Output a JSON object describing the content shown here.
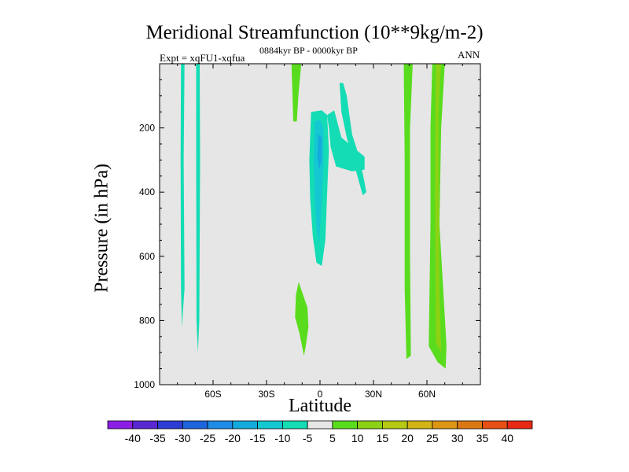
{
  "chart_data": {
    "type": "heatmap",
    "title": "Meridional Streamfunction (10**9kg/m-2)",
    "subtitle": "0884kyr BP - 0000kyr BP",
    "experiment_label": "Expt = xqFU1-xqfua",
    "season_label": "ANN",
    "xlabel": "Latitude",
    "ylabel": "Pressure (in hPa)",
    "xlim": [
      -90,
      90
    ],
    "ylim": [
      1000,
      0
    ],
    "x_ticks": [
      {
        "value": -60,
        "label": "60S"
      },
      {
        "value": -30,
        "label": "30S"
      },
      {
        "value": 0,
        "label": "0"
      },
      {
        "value": 30,
        "label": "30N"
      },
      {
        "value": 60,
        "label": "60N"
      }
    ],
    "y_ticks": [
      {
        "value": 200,
        "label": "200"
      },
      {
        "value": 400,
        "label": "400"
      },
      {
        "value": 600,
        "label": "600"
      },
      {
        "value": 800,
        "label": "800"
      },
      {
        "value": 1000,
        "label": "1000"
      }
    ],
    "background_color": "#e6e6e6",
    "colorbar": {
      "levels": [
        "-40",
        "-35",
        "-30",
        "-25",
        "-20",
        "-15",
        "-10",
        "-5",
        "5",
        "10",
        "15",
        "20",
        "25",
        "30",
        "35",
        "40"
      ],
      "colors": [
        "#8c1ee6",
        "#5a28d2",
        "#2d3cd2",
        "#1e64dc",
        "#1e8ce6",
        "#14aadc",
        "#14c8d2",
        "#14dcb4",
        "#e6e6e6",
        "#5adc1e",
        "#8cd214",
        "#b4c814",
        "#d2b414",
        "#dc9614",
        "#dc7814",
        "#e65014",
        "#e62814"
      ]
    },
    "regions": [
      {
        "name": "s-high-lat-neg-band",
        "level_color": "#14dcb4",
        "points": [
          [
            -78,
            0
          ],
          [
            -76,
            0
          ],
          [
            -76.5,
            300
          ],
          [
            -76,
            700
          ],
          [
            -77.5,
            820
          ],
          [
            -78,
            700
          ],
          [
            -78.2,
            300
          ]
        ]
      },
      {
        "name": "s-midlat-neg-band",
        "level_color": "#14dcb4",
        "points": [
          [
            -69.5,
            0
          ],
          [
            -67.5,
            0
          ],
          [
            -67.3,
            300
          ],
          [
            -67.7,
            800
          ],
          [
            -68.5,
            900
          ],
          [
            -69.3,
            800
          ],
          [
            -69.5,
            300
          ]
        ]
      },
      {
        "name": "tropical-neg-cell-outer",
        "level_color": "#14dcb4",
        "points": [
          [
            -5,
            150
          ],
          [
            1,
            145
          ],
          [
            4,
            160
          ],
          [
            5,
            270
          ],
          [
            4,
            400
          ],
          [
            3,
            550
          ],
          [
            1,
            630
          ],
          [
            -2,
            620
          ],
          [
            -4,
            540
          ],
          [
            -5.5,
            420
          ],
          [
            -6,
            300
          ]
        ]
      },
      {
        "name": "tropical-neg-cell-mid",
        "level_color": "#14c8d2",
        "points": [
          [
            -3,
            180
          ],
          [
            0,
            175
          ],
          [
            2,
            200
          ],
          [
            2,
            320
          ],
          [
            1,
            420
          ],
          [
            -0.5,
            560
          ],
          [
            -1.8,
            520
          ],
          [
            -3,
            420
          ],
          [
            -3.5,
            300
          ]
        ]
      },
      {
        "name": "tropical-neg-cell-core",
        "level_color": "#14aadc",
        "points": [
          [
            -1,
            220
          ],
          [
            1,
            230
          ],
          [
            1,
            300
          ],
          [
            -0.5,
            330
          ],
          [
            -1.5,
            290
          ]
        ]
      },
      {
        "name": "n-tropical-neg-lobe",
        "level_color": "#14dcb4",
        "points": [
          [
            4,
            160
          ],
          [
            8,
            145
          ],
          [
            12,
            230
          ],
          [
            25,
            290
          ],
          [
            25,
            330
          ],
          [
            18,
            335
          ],
          [
            9,
            320
          ],
          [
            6,
            260
          ],
          [
            5,
            200
          ]
        ]
      },
      {
        "name": "n-tropical-neg-sliver",
        "level_color": "#14dcb4",
        "points": [
          [
            11,
            60
          ],
          [
            13,
            60
          ],
          [
            15,
            100
          ],
          [
            18,
            220
          ],
          [
            22,
            290
          ],
          [
            25,
            370
          ],
          [
            26,
            400
          ],
          [
            24,
            410
          ],
          [
            20,
            330
          ],
          [
            15,
            230
          ],
          [
            12,
            150
          ]
        ]
      },
      {
        "name": "upper-pos-sliver",
        "level_color": "#5adc1e",
        "points": [
          [
            -16,
            0
          ],
          [
            -10.5,
            0
          ],
          [
            -12,
            90
          ],
          [
            -13,
            180
          ],
          [
            -15,
            180
          ],
          [
            -15.5,
            90
          ]
        ]
      },
      {
        "name": "lower-pos-blob",
        "level_color": "#5adc1e",
        "points": [
          [
            -12,
            680
          ],
          [
            -7,
            760
          ],
          [
            -6.5,
            820
          ],
          [
            -8,
            880
          ],
          [
            -9,
            910
          ],
          [
            -11.5,
            840
          ],
          [
            -14,
            790
          ],
          [
            -13.5,
            720
          ]
        ]
      },
      {
        "name": "n-midlat-pos-band",
        "level_color": "#5adc1e",
        "points": [
          [
            47,
            0
          ],
          [
            52,
            0
          ],
          [
            50.5,
            200
          ],
          [
            50.5,
            600
          ],
          [
            51,
            910
          ],
          [
            48.5,
            920
          ],
          [
            47.5,
            700
          ],
          [
            47.5,
            300
          ]
        ]
      },
      {
        "name": "n-highlat-pos-band-outer",
        "level_color": "#5adc1e",
        "points": [
          [
            63,
            0
          ],
          [
            70,
            0
          ],
          [
            68,
            200
          ],
          [
            67,
            500
          ],
          [
            71,
            880
          ],
          [
            70.5,
            950
          ],
          [
            66,
            930
          ],
          [
            61,
            880
          ],
          [
            62,
            500
          ],
          [
            62,
            200
          ]
        ]
      },
      {
        "name": "n-highlat-pos-band-inner",
        "level_color": "#8cd214",
        "points": [
          [
            65,
            0
          ],
          [
            68,
            0
          ],
          [
            66.5,
            150
          ],
          [
            67,
            700
          ],
          [
            68,
            900
          ],
          [
            65,
            870
          ],
          [
            64.5,
            400
          ]
        ]
      }
    ]
  }
}
